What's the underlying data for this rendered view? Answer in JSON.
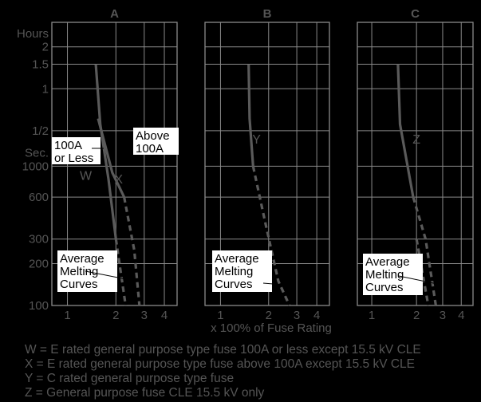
{
  "chart_data": {
    "type": "line",
    "panels": [
      {
        "title": "A"
      },
      {
        "title": "B"
      },
      {
        "title": "C"
      }
    ],
    "y_scale": "log",
    "y_label_hours": "Hours",
    "y_label_sec": "Sec.",
    "y_ticks_hours": [
      {
        "value": 7200,
        "label": "2"
      },
      {
        "value": 5400,
        "label": "1.5"
      },
      {
        "value": 3600,
        "label": "1"
      },
      {
        "value": 1800,
        "label": "1/2"
      }
    ],
    "y_ticks_sec": [
      {
        "value": 1000,
        "label": "1000"
      },
      {
        "value": 600,
        "label": "600"
      },
      {
        "value": 300,
        "label": "300"
      },
      {
        "value": 200,
        "label": "200"
      },
      {
        "value": 100,
        "label": "100"
      }
    ],
    "x_scale": "log",
    "x_ticks": [
      {
        "value": 1,
        "label": "1"
      },
      {
        "value": 2,
        "label": "2"
      },
      {
        "value": 3,
        "label": "3"
      },
      {
        "value": 4,
        "label": "4"
      }
    ],
    "xlabel": "x 100% of Fuse Rating",
    "series": [
      {
        "panel": 0,
        "name": "W",
        "style": "solid",
        "points": [
          [
            1.5,
            5400
          ],
          [
            1.6,
            2000
          ],
          [
            1.8,
            800
          ],
          [
            2.0,
            300
          ]
        ]
      },
      {
        "panel": 0,
        "style": "dashed",
        "points": [
          [
            2.0,
            300
          ],
          [
            2.3,
            100
          ]
        ]
      },
      {
        "panel": 0,
        "name": "X",
        "style": "solid",
        "points": [
          [
            1.55,
            2200
          ],
          [
            1.9,
            900
          ],
          [
            2.25,
            600
          ]
        ]
      },
      {
        "panel": 0,
        "style": "dashed",
        "points": [
          [
            2.25,
            600
          ],
          [
            2.6,
            250
          ],
          [
            2.8,
            100
          ]
        ]
      },
      {
        "panel": 1,
        "name": "Y",
        "style": "solid",
        "points": [
          [
            1.5,
            5400
          ],
          [
            1.52,
            2200
          ],
          [
            1.6,
            1000
          ]
        ]
      },
      {
        "panel": 1,
        "style": "dashed",
        "points": [
          [
            1.6,
            1000
          ],
          [
            1.9,
            400
          ],
          [
            2.3,
            150
          ],
          [
            2.7,
            100
          ]
        ]
      },
      {
        "panel": 2,
        "name": "Z",
        "style": "solid",
        "points": [
          [
            1.5,
            5400
          ],
          [
            1.55,
            2000
          ],
          [
            1.9,
            600
          ]
        ]
      },
      {
        "panel": 2,
        "style": "dashed",
        "points": [
          [
            1.9,
            600
          ],
          [
            2.3,
            300
          ],
          [
            2.7,
            100
          ]
        ]
      },
      {
        "panel": 2,
        "style": "dashed",
        "points": [
          [
            2.0,
            300
          ],
          [
            2.4,
            100
          ]
        ]
      }
    ],
    "annotations": {
      "above_100a": "Above\n100A",
      "100a_or_less": "100A\nor Less",
      "average_melting": "Average\nMelting\nCurves"
    },
    "legend": [
      "W = E rated general purpose type fuse 100A or less except 15.5 kV CLE",
      "X = E rated general purpose type fuse above 100A except 15.5 kV CLE",
      "Y = C rated general purpose type fuse",
      "Z = General purpose fuse CLE 15.5 kV only"
    ],
    "colors": {
      "background": "#000000",
      "grid": "#8a8a8a",
      "curve": "#5a5a5a",
      "label_text": "#555555",
      "box_fill": "#ffffff",
      "box_text": "#000000"
    }
  }
}
